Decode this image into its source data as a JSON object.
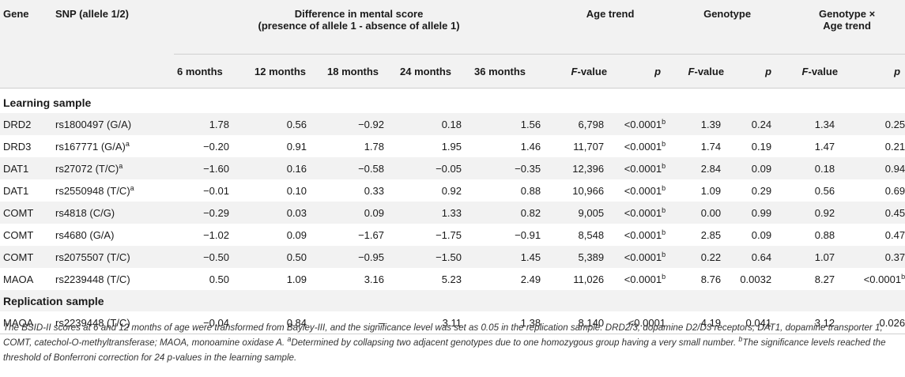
{
  "headers": {
    "gene": "Gene",
    "snp": "SNP (allele 1/2)",
    "diff_line1": "Difference in mental score",
    "diff_line2": "(presence of allele 1 - absence of allele 1)",
    "age_trend": "Age trend",
    "genotype": "Genotype",
    "gxa_line1": "Genotype ×",
    "gxa_line2": "Age trend",
    "months": [
      "6  months",
      "12  months",
      "18  months",
      "24  months",
      "36  months"
    ],
    "f_value_italic": "F",
    "f_value_rest": "-value",
    "p": "p"
  },
  "sections": {
    "learning": "Learning sample",
    "replication": "Replication sample"
  },
  "learning_rows": [
    {
      "gene": "DRD2",
      "snp": "rs1800497 (G/A)",
      "snp_sup": "",
      "m6": "1.78",
      "m12": "0.56",
      "m18": "−0.92",
      "m24": "0.18",
      "m36": "1.56",
      "age_f": "6,798",
      "age_p": "<0.0001",
      "age_p_sup": "b",
      "gen_f": "1.39",
      "gen_p": "0.24",
      "gxa_f": "1.34",
      "gxa_p": "0.25",
      "gxa_p_sup": ""
    },
    {
      "gene": "DRD3",
      "snp": "rs167771 (G/A)",
      "snp_sup": "a",
      "m6": "−0.20",
      "m12": "0.91",
      "m18": "1.78",
      "m24": "1.95",
      "m36": "1.46",
      "age_f": "11,707",
      "age_p": "<0.0001",
      "age_p_sup": "b",
      "gen_f": "1.74",
      "gen_p": "0.19",
      "gxa_f": "1.47",
      "gxa_p": "0.21",
      "gxa_p_sup": ""
    },
    {
      "gene": "DAT1",
      "snp": "rs27072 (T/C)",
      "snp_sup": "a",
      "m6": "−1.60",
      "m12": "0.16",
      "m18": "−0.58",
      "m24": "−0.05",
      "m36": "−0.35",
      "age_f": "12,396",
      "age_p": "<0.0001",
      "age_p_sup": "b",
      "gen_f": "2.84",
      "gen_p": "0.09",
      "gxa_f": "0.18",
      "gxa_p": "0.94",
      "gxa_p_sup": ""
    },
    {
      "gene": "DAT1",
      "snp": "rs2550948 (T/C)",
      "snp_sup": "a",
      "m6": "−0.01",
      "m12": "0.10",
      "m18": "0.33",
      "m24": "0.92",
      "m36": "0.88",
      "age_f": "10,966",
      "age_p": "<0.0001",
      "age_p_sup": "b",
      "gen_f": "1.09",
      "gen_p": "0.29",
      "gxa_f": "0.56",
      "gxa_p": "0.69",
      "gxa_p_sup": ""
    },
    {
      "gene": "COMT",
      "snp": "rs4818 (C/G)",
      "snp_sup": "",
      "m6": "−0.29",
      "m12": "0.03",
      "m18": "0.09",
      "m24": "1.33",
      "m36": "0.82",
      "age_f": "9,005",
      "age_p": "<0.0001",
      "age_p_sup": "b",
      "gen_f": "0.00",
      "gen_p": "0.99",
      "gxa_f": "0.92",
      "gxa_p": "0.45",
      "gxa_p_sup": ""
    },
    {
      "gene": "COMT",
      "snp": "rs4680 (G/A)",
      "snp_sup": "",
      "m6": "−1.02",
      "m12": "0.09",
      "m18": "−1.67",
      "m24": "−1.75",
      "m36": "−0.91",
      "age_f": "8,548",
      "age_p": "<0.0001",
      "age_p_sup": "b",
      "gen_f": "2.85",
      "gen_p": "0.09",
      "gxa_f": "0.88",
      "gxa_p": "0.47",
      "gxa_p_sup": ""
    },
    {
      "gene": "COMT",
      "snp": "rs2075507 (T/C)",
      "snp_sup": "",
      "m6": "−0.50",
      "m12": "0.50",
      "m18": "−0.95",
      "m24": "−1.50",
      "m36": "1.45",
      "age_f": "5,389",
      "age_p": "<0.0001",
      "age_p_sup": "b",
      "gen_f": "0.22",
      "gen_p": "0.64",
      "gxa_f": "1.07",
      "gxa_p": "0.37",
      "gxa_p_sup": ""
    },
    {
      "gene": "MAOA",
      "snp": "rs2239448 (T/C)",
      "snp_sup": "",
      "m6": "0.50",
      "m12": "1.09",
      "m18": "3.16",
      "m24": "5.23",
      "m36": "2.49",
      "age_f": "11,026",
      "age_p": "<0.0001",
      "age_p_sup": "b",
      "gen_f": "8.76",
      "gen_p": "0.0032",
      "gxa_f": "8.27",
      "gxa_p": "<0.0001",
      "gxa_p_sup": "b"
    }
  ],
  "replication_rows": [
    {
      "gene": "MAOA",
      "snp": "rs2239448 (T/C)",
      "snp_sup": "",
      "m6": "−0.04",
      "m12": "0.84",
      "m18": "–",
      "m24": "3.11",
      "m36": "1.38",
      "age_f": "8,140",
      "age_p": "<0.0001",
      "age_p_sup": "",
      "gen_f": "4.19",
      "gen_p": "0.041",
      "gxa_f": "3.12",
      "gxa_p": "0.026",
      "gxa_p_sup": ""
    }
  ],
  "footnote": {
    "main": "The BSID-II scores at 6 and 12 months of age were transformed from Bayley-III, and the significance level was set as 0.05 in the replication sample. DRD2/3, dopamine D2/D3 receptors; DAT1, dopamine transporter 1; COMT, catechol-O-methyltransferase; MAOA, monoamine oxidase A. ",
    "a_mark": "a",
    "a_text": "Determined by collapsing two adjacent genotypes due to one homozygous group having a very small number. ",
    "b_mark": "b",
    "b_text": "The significance levels reached the threshold of Bonferroni correction for 24 p-values in the learning sample."
  }
}
